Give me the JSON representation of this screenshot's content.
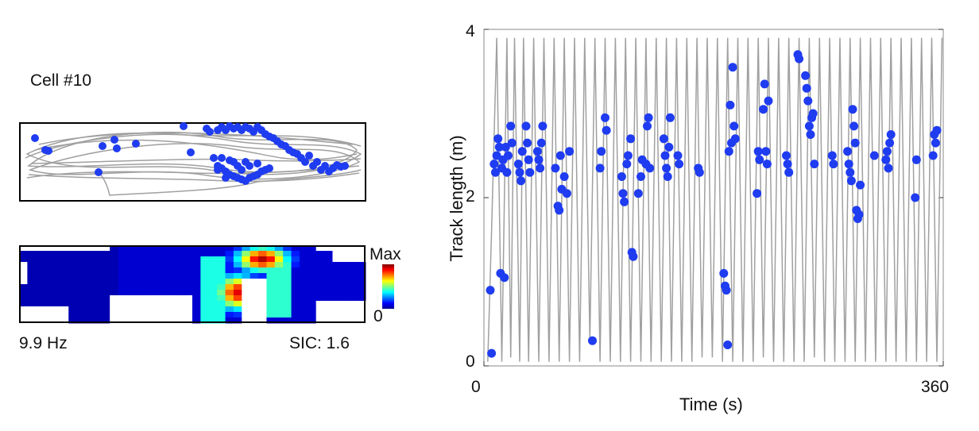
{
  "left_panel": {
    "cell_title": "Cell #10",
    "firing_rate": "9.9 Hz",
    "sic": "SIC: 1.6",
    "colorbar_max": "Max",
    "colorbar_min": "0"
  },
  "colors": {
    "trajectory": "#a0a0a0",
    "spike": "#1f3cf0",
    "frame": "#000000"
  },
  "chart_data": {
    "type": "scatter",
    "title": "",
    "xlabel": "Time (s)",
    "ylabel": "Track length (m)",
    "xlim": [
      0,
      360
    ],
    "ylim": [
      0,
      4
    ],
    "x_ticks": [
      "0",
      "360"
    ],
    "y_ticks": [
      "0",
      "2",
      "4"
    ],
    "series": [
      {
        "kind": "line",
        "x": [
          3,
          6,
          10,
          14,
          18,
          21,
          24,
          28,
          31,
          35,
          39,
          43,
          47,
          51,
          55,
          59,
          63,
          67,
          71,
          75,
          79,
          83,
          87,
          91,
          95,
          99,
          103,
          107,
          111,
          115,
          119,
          123,
          127,
          131,
          135,
          139,
          143,
          147,
          151,
          155,
          159,
          163,
          167,
          171,
          175,
          179,
          183,
          187,
          191,
          195,
          199,
          203,
          207,
          211,
          215,
          219,
          223,
          227,
          231,
          235,
          239,
          243,
          247,
          251,
          255,
          259,
          263,
          267,
          271,
          275,
          279,
          283,
          287,
          291,
          295,
          299,
          303,
          307,
          311,
          315,
          319,
          323,
          327,
          331,
          335,
          339,
          343,
          347,
          351,
          355,
          359
        ],
        "values": [
          0.05,
          1.6,
          3.9,
          0.05,
          3.9,
          0.1,
          3.9,
          0.05,
          3.9,
          0.05,
          3.9,
          0.05,
          3.9,
          0.05,
          3.9,
          0.05,
          3.9,
          0.05,
          3.9,
          0.05,
          3.9,
          0.3,
          3.9,
          0.05,
          3.9,
          0.05,
          3.9,
          0.05,
          3.9,
          0.05,
          3.9,
          0.05,
          3.9,
          0.05,
          3.9,
          0.05,
          3.9,
          0.05,
          3.9,
          0.05,
          3.9,
          0.05,
          3.9,
          0.1,
          3.9,
          0.1,
          3.9,
          0.05,
          3.9,
          0.05,
          3.9,
          0.05,
          3.9,
          0.05,
          3.9,
          0.1,
          3.9,
          0.05,
          3.9,
          0.05,
          3.9,
          0.05,
          3.9,
          0.05,
          3.9,
          0.1,
          3.9,
          0.05,
          3.9,
          0.05,
          3.9,
          0.05,
          3.9,
          0.05,
          3.9,
          0.05,
          3.9,
          0.05,
          3.9,
          0.05,
          3.9,
          0.05,
          3.9,
          0.05,
          3.9,
          0.05,
          3.9,
          0.05,
          3.9,
          0.05,
          3.9
        ]
      },
      {
        "kind": "scatter",
        "points": [
          [
            5,
            0.9
          ],
          [
            6,
            0.15
          ],
          [
            8,
            2.4
          ],
          [
            9,
            2.3
          ],
          [
            10,
            2.5
          ],
          [
            11,
            2.7
          ],
          [
            12,
            2.6
          ],
          [
            13,
            1.1
          ],
          [
            14,
            2.35
          ],
          [
            15,
            2.45
          ],
          [
            16,
            1.05
          ],
          [
            17,
            2.6
          ],
          [
            18,
            2.3
          ],
          [
            19,
            2.5
          ],
          [
            21,
            2.85
          ],
          [
            22,
            2.65
          ],
          [
            27,
            2.4
          ],
          [
            28,
            2.3
          ],
          [
            29,
            2.2
          ],
          [
            30,
            2.55
          ],
          [
            33,
            2.85
          ],
          [
            34,
            2.65
          ],
          [
            35,
            2.45
          ],
          [
            36,
            2.3
          ],
          [
            42,
            2.55
          ],
          [
            43,
            2.45
          ],
          [
            44,
            2.35
          ],
          [
            45,
            2.65
          ],
          [
            46,
            2.85
          ],
          [
            56,
            2.35
          ],
          [
            58,
            1.9
          ],
          [
            59,
            1.85
          ],
          [
            60,
            2.5
          ],
          [
            61,
            2.1
          ],
          [
            63,
            2.25
          ],
          [
            65,
            2.05
          ],
          [
            67,
            2.55
          ],
          [
            85,
            0.3
          ],
          [
            91,
            2.35
          ],
          [
            92,
            2.55
          ],
          [
            95,
            2.95
          ],
          [
            96,
            2.8
          ],
          [
            108,
            2.25
          ],
          [
            109,
            2.05
          ],
          [
            110,
            1.95
          ],
          [
            112,
            2.4
          ],
          [
            113,
            2.5
          ],
          [
            115,
            2.7
          ],
          [
            116,
            1.35
          ],
          [
            117,
            1.3
          ],
          [
            121,
            2.05
          ],
          [
            123,
            2.25
          ],
          [
            124,
            2.45
          ],
          [
            127,
            2.4
          ],
          [
            128,
            2.85
          ],
          [
            129,
            2.95
          ],
          [
            130,
            2.35
          ],
          [
            141,
            2.7
          ],
          [
            142,
            2.5
          ],
          [
            143,
            2.35
          ],
          [
            144,
            2.25
          ],
          [
            145,
            2.6
          ],
          [
            146,
            2.95
          ],
          [
            152,
            2.5
          ],
          [
            153,
            2.4
          ],
          [
            168,
            2.35
          ],
          [
            169,
            2.3
          ],
          [
            188,
            1.1
          ],
          [
            189,
            0.95
          ],
          [
            190,
            0.9
          ],
          [
            191,
            0.25
          ],
          [
            192,
            2.55
          ],
          [
            193,
            3.1
          ],
          [
            194,
            2.65
          ],
          [
            195,
            3.55
          ],
          [
            196,
            2.85
          ],
          [
            197,
            2.7
          ],
          [
            214,
            2.05
          ],
          [
            215,
            2.55
          ],
          [
            216,
            2.45
          ],
          [
            219,
            3.05
          ],
          [
            220,
            3.35
          ],
          [
            221,
            2.55
          ],
          [
            222,
            2.4
          ],
          [
            223,
            3.15
          ],
          [
            237,
            2.5
          ],
          [
            238,
            2.4
          ],
          [
            239,
            2.3
          ],
          [
            246,
            3.7
          ],
          [
            247,
            3.65
          ],
          [
            252,
            3.45
          ],
          [
            253,
            3.3
          ],
          [
            254,
            3.15
          ],
          [
            255,
            2.85
          ],
          [
            256,
            2.75
          ],
          [
            257,
            2.95
          ],
          [
            258,
            3.0
          ],
          [
            259,
            2.4
          ],
          [
            273,
            2.5
          ],
          [
            274,
            2.4
          ],
          [
            285,
            2.55
          ],
          [
            286,
            2.4
          ],
          [
            287,
            2.3
          ],
          [
            288,
            2.2
          ],
          [
            289,
            3.05
          ],
          [
            290,
            2.85
          ],
          [
            291,
            2.65
          ],
          [
            292,
            1.85
          ],
          [
            293,
            1.75
          ],
          [
            294,
            1.8
          ],
          [
            295,
            2.15
          ],
          [
            306,
            2.5
          ],
          [
            315,
            2.45
          ],
          [
            316,
            2.55
          ],
          [
            317,
            2.35
          ],
          [
            318,
            2.65
          ],
          [
            319,
            2.75
          ],
          [
            338,
            2.0
          ],
          [
            339,
            2.45
          ],
          [
            352,
            2.5
          ],
          [
            353,
            2.75
          ],
          [
            354,
            2.65
          ],
          [
            355,
            2.8
          ]
        ]
      }
    ]
  }
}
